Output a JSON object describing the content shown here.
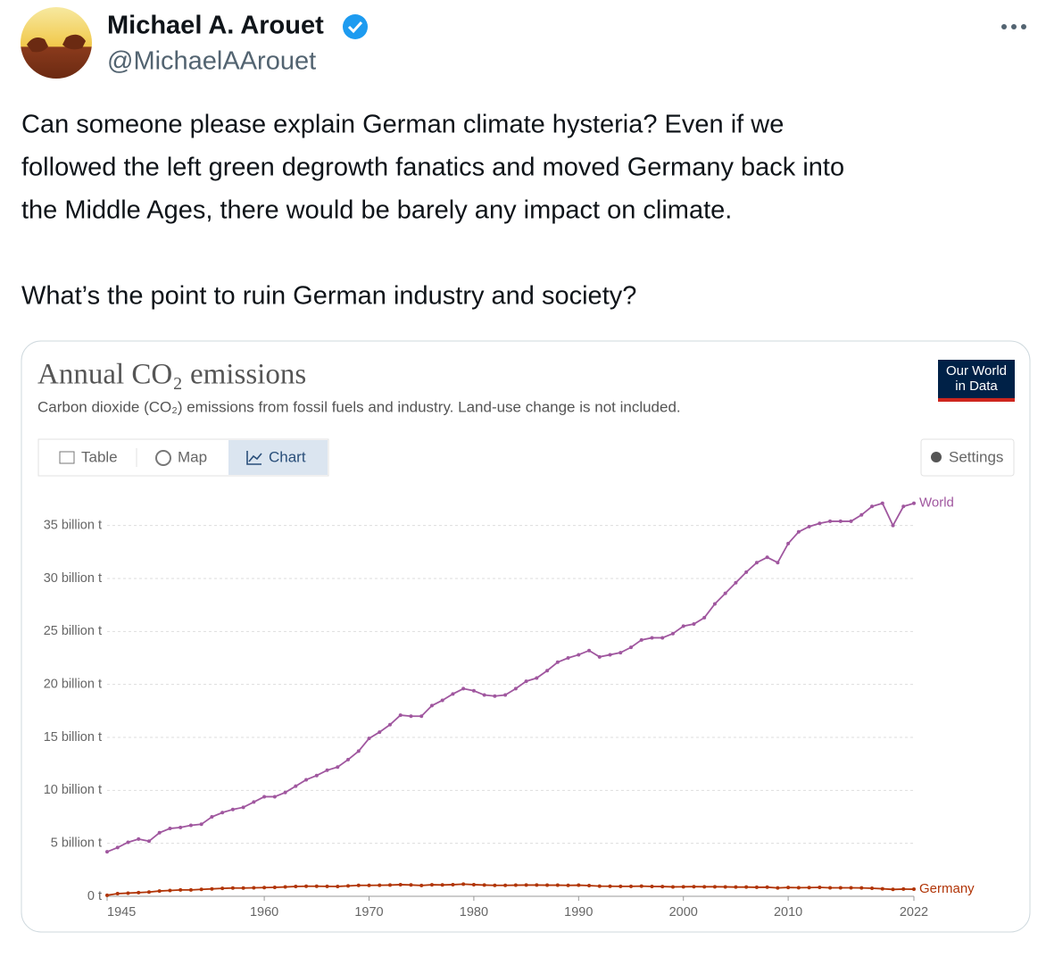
{
  "author": {
    "name": "Michael A. Arouet",
    "handle": "@MichaelAArouet"
  },
  "tweet_lines": [
    "Can someone please explain German climate hysteria? Even if we",
    "followed the left green degrowth fanatics and moved Germany back into",
    "the Middle Ages, there would be barely any impact on climate.",
    "What’s the point to ruin German industry and society?"
  ],
  "logo": [
    "Our World",
    "in Data"
  ],
  "tabs": [
    "Table",
    "Map",
    "Chart"
  ],
  "settings": "Settings",
  "chart_data": {
    "type": "line",
    "title": "Annual CO₂ emissions",
    "subtitle": "Carbon dioxide (CO₂) emissions from fossil fuels and industry. Land-use change is not included.",
    "x": [
      1945,
      1946,
      1947,
      1948,
      1949,
      1950,
      1951,
      1952,
      1953,
      1954,
      1955,
      1956,
      1957,
      1958,
      1959,
      1960,
      1961,
      1962,
      1963,
      1964,
      1965,
      1966,
      1967,
      1968,
      1969,
      1970,
      1971,
      1972,
      1973,
      1974,
      1975,
      1976,
      1977,
      1978,
      1979,
      1980,
      1981,
      1982,
      1983,
      1984,
      1985,
      1986,
      1987,
      1988,
      1989,
      1990,
      1991,
      1992,
      1993,
      1994,
      1995,
      1996,
      1997,
      1998,
      1999,
      2000,
      2001,
      2002,
      2003,
      2004,
      2005,
      2006,
      2007,
      2008,
      2009,
      2010,
      2011,
      2012,
      2013,
      2014,
      2015,
      2016,
      2017,
      2018,
      2019,
      2020,
      2021,
      2022
    ],
    "series": [
      {
        "name": "World",
        "color": "#a0579f",
        "values": [
          4.2,
          4.6,
          5.1,
          5.4,
          5.2,
          6.0,
          6.4,
          6.5,
          6.7,
          6.8,
          7.5,
          7.9,
          8.2,
          8.4,
          8.9,
          9.4,
          9.4,
          9.8,
          10.4,
          11.0,
          11.4,
          11.9,
          12.2,
          12.9,
          13.7,
          14.9,
          15.5,
          16.2,
          17.1,
          17.0,
          17.0,
          18.0,
          18.5,
          19.1,
          19.6,
          19.4,
          19.0,
          18.9,
          19.0,
          19.6,
          20.3,
          20.6,
          21.3,
          22.1,
          22.5,
          22.8,
          23.2,
          22.6,
          22.8,
          23.0,
          23.5,
          24.2,
          24.4,
          24.4,
          24.8,
          25.5,
          25.7,
          26.3,
          27.6,
          28.6,
          29.6,
          30.6,
          31.5,
          32.0,
          31.5,
          33.3,
          34.4,
          34.9,
          35.2,
          35.4,
          35.4,
          35.4,
          36.0,
          36.8,
          37.1,
          35.0,
          36.8,
          37.1
        ]
      },
      {
        "name": "Germany",
        "color": "#b13507",
        "values": [
          0.1,
          0.25,
          0.3,
          0.35,
          0.4,
          0.5,
          0.55,
          0.6,
          0.6,
          0.65,
          0.7,
          0.75,
          0.78,
          0.78,
          0.8,
          0.82,
          0.84,
          0.88,
          0.93,
          0.95,
          0.95,
          0.94,
          0.93,
          0.98,
          1.03,
          1.03,
          1.04,
          1.06,
          1.1,
          1.07,
          1.02,
          1.09,
          1.07,
          1.1,
          1.15,
          1.1,
          1.06,
          1.03,
          1.03,
          1.05,
          1.06,
          1.06,
          1.05,
          1.05,
          1.03,
          1.05,
          1.01,
          0.96,
          0.95,
          0.94,
          0.94,
          0.96,
          0.93,
          0.92,
          0.89,
          0.9,
          0.91,
          0.9,
          0.9,
          0.89,
          0.87,
          0.87,
          0.85,
          0.86,
          0.79,
          0.83,
          0.81,
          0.82,
          0.84,
          0.8,
          0.8,
          0.8,
          0.79,
          0.76,
          0.71,
          0.65,
          0.68,
          0.67
        ]
      }
    ],
    "xlim": [
      1945,
      2022
    ],
    "xticks": [
      1945,
      1960,
      1970,
      1980,
      1990,
      2000,
      2010,
      2022
    ],
    "ylim": [
      0,
      37.5
    ],
    "yticks": [
      {
        "value": 0,
        "label": "0 t"
      },
      {
        "value": 5,
        "label": "5 billion t"
      },
      {
        "value": 10,
        "label": "10 billion t"
      },
      {
        "value": 15,
        "label": "15 billion t"
      },
      {
        "value": 20,
        "label": "20 billion t"
      },
      {
        "value": 25,
        "label": "25 billion t"
      },
      {
        "value": 30,
        "label": "30 billion t"
      },
      {
        "value": 35,
        "label": "35 billion t"
      }
    ],
    "grid": true
  }
}
